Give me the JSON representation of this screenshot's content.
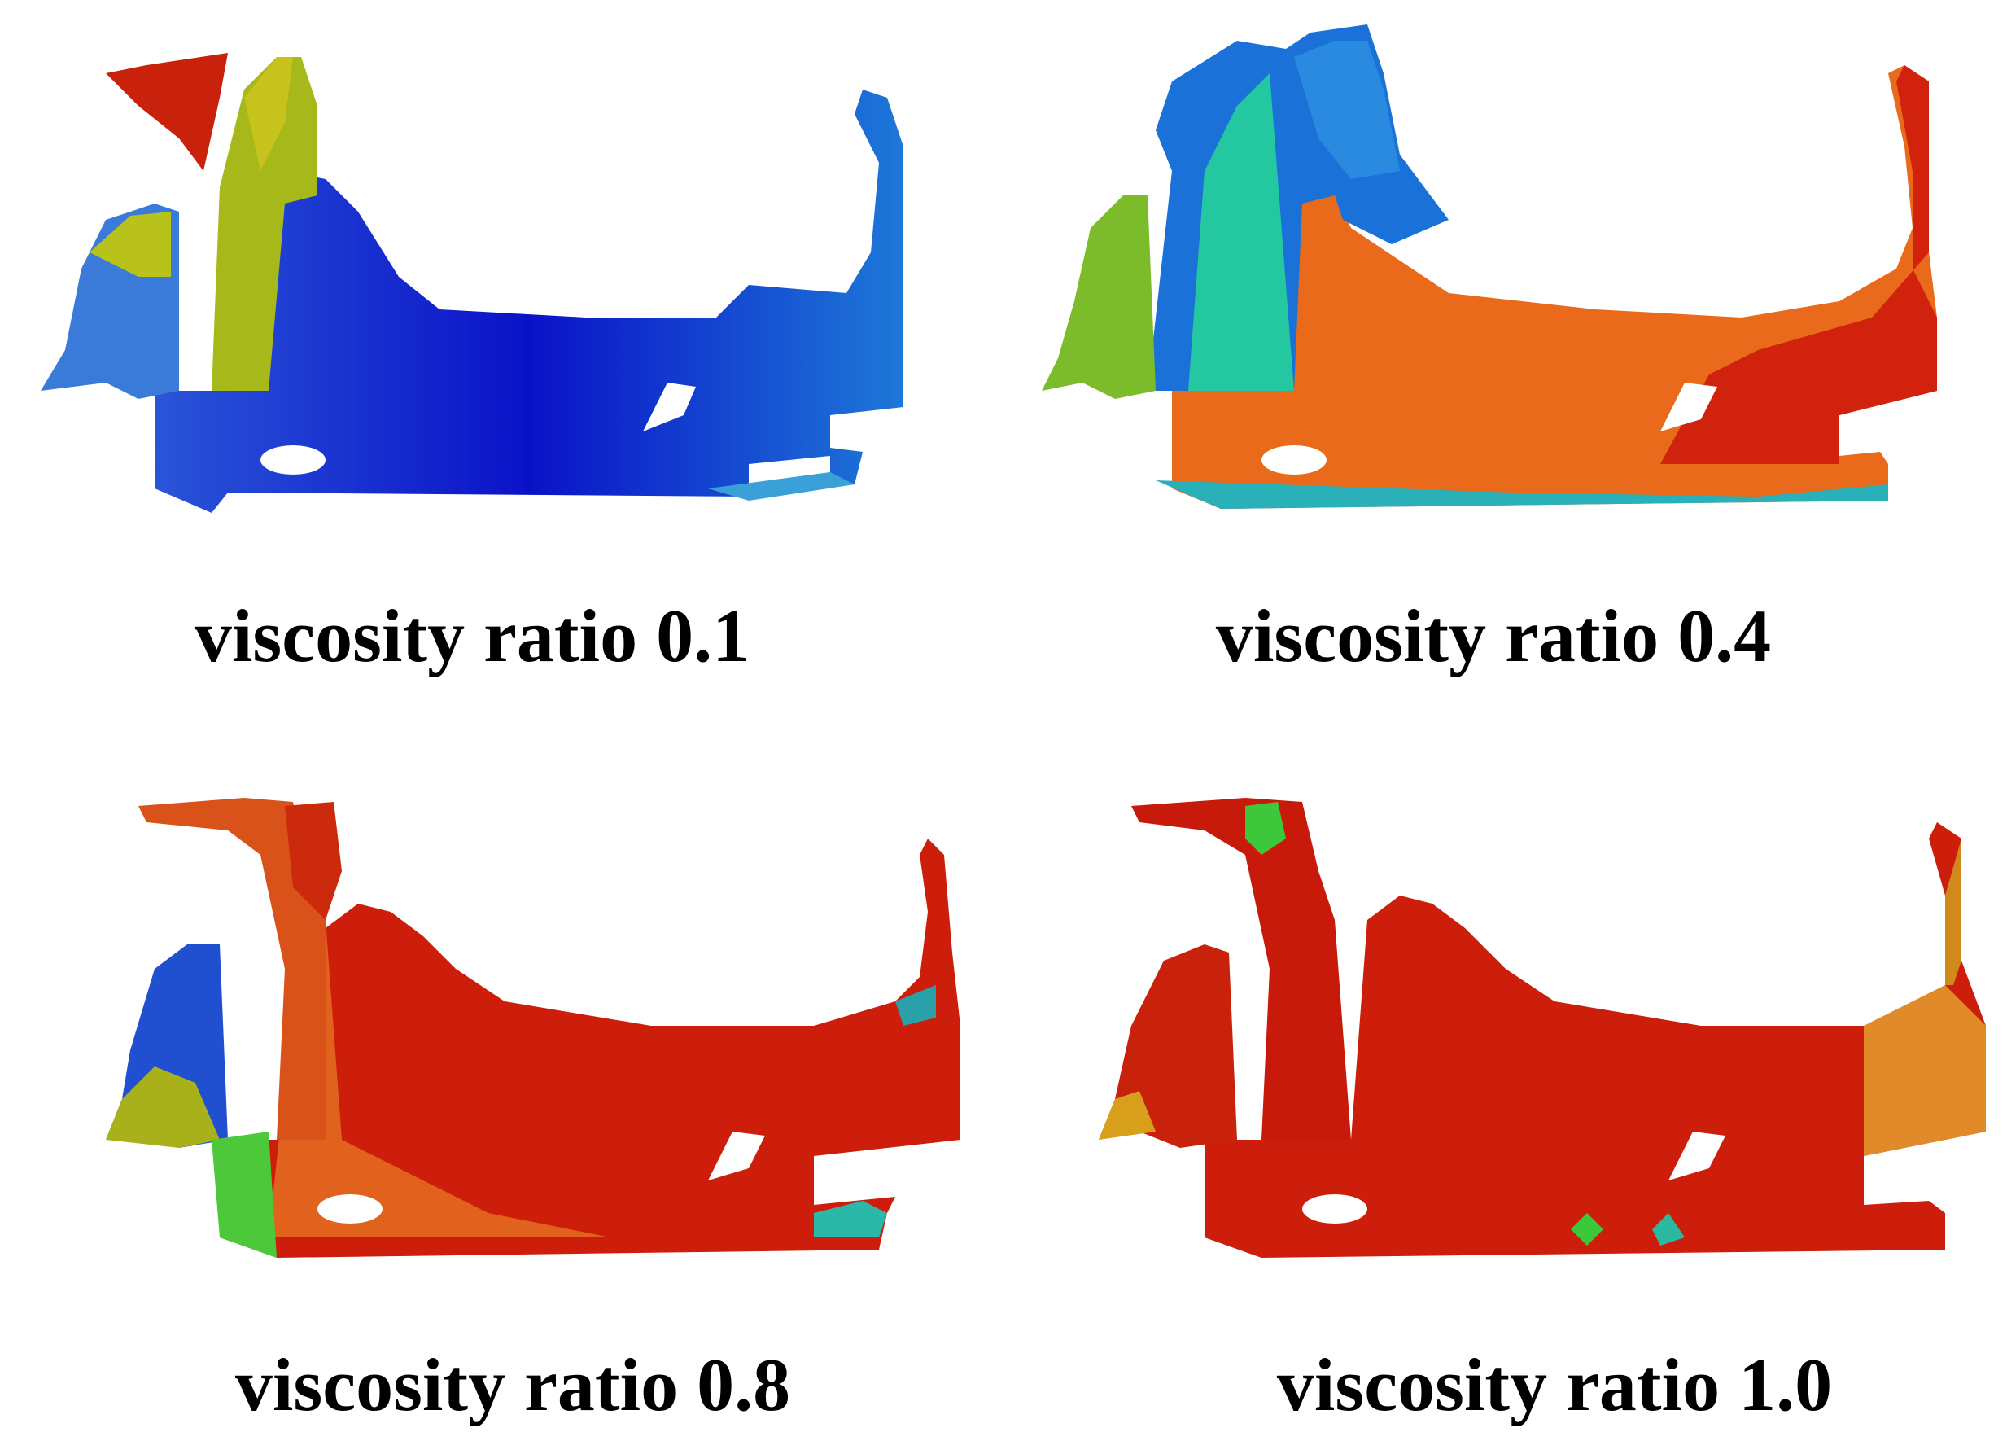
{
  "panels": [
    {
      "caption": "viscosity ratio 0.1"
    },
    {
      "caption": "viscosity ratio 0.4"
    },
    {
      "caption": "viscosity ratio 0.8"
    },
    {
      "caption": "viscosity ratio 1.0"
    }
  ],
  "colors": {
    "blue": "#0a1fd0",
    "cyan": "#1aa6d8",
    "green": "#2fd02a",
    "yellow": "#c9c21a",
    "orange": "#e8641a",
    "red": "#cc1a0a"
  }
}
